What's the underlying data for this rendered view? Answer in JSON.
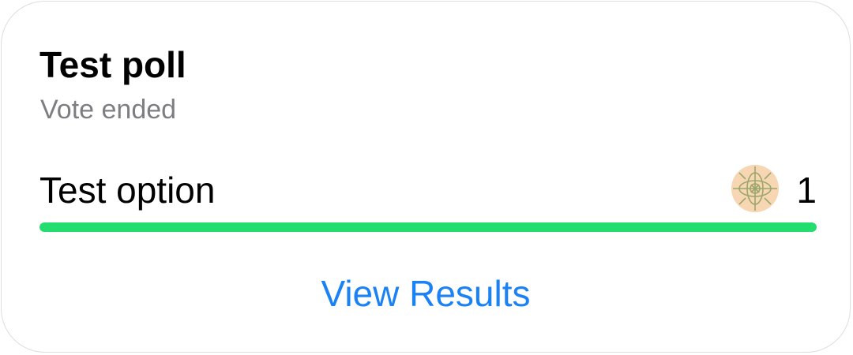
{
  "poll": {
    "title": "Test poll",
    "status": "Vote ended",
    "options": [
      {
        "label": "Test option",
        "vote_count": "1",
        "vote_fraction": 1.0,
        "voter_avatar_icon": "pattern-avatar-icon"
      }
    ],
    "view_results_label": "View Results"
  },
  "colors": {
    "progress_fill": "#23de6e",
    "link": "#1a82f5",
    "secondary_text": "#7d7d82",
    "avatar_background": "#f7d6b3"
  }
}
